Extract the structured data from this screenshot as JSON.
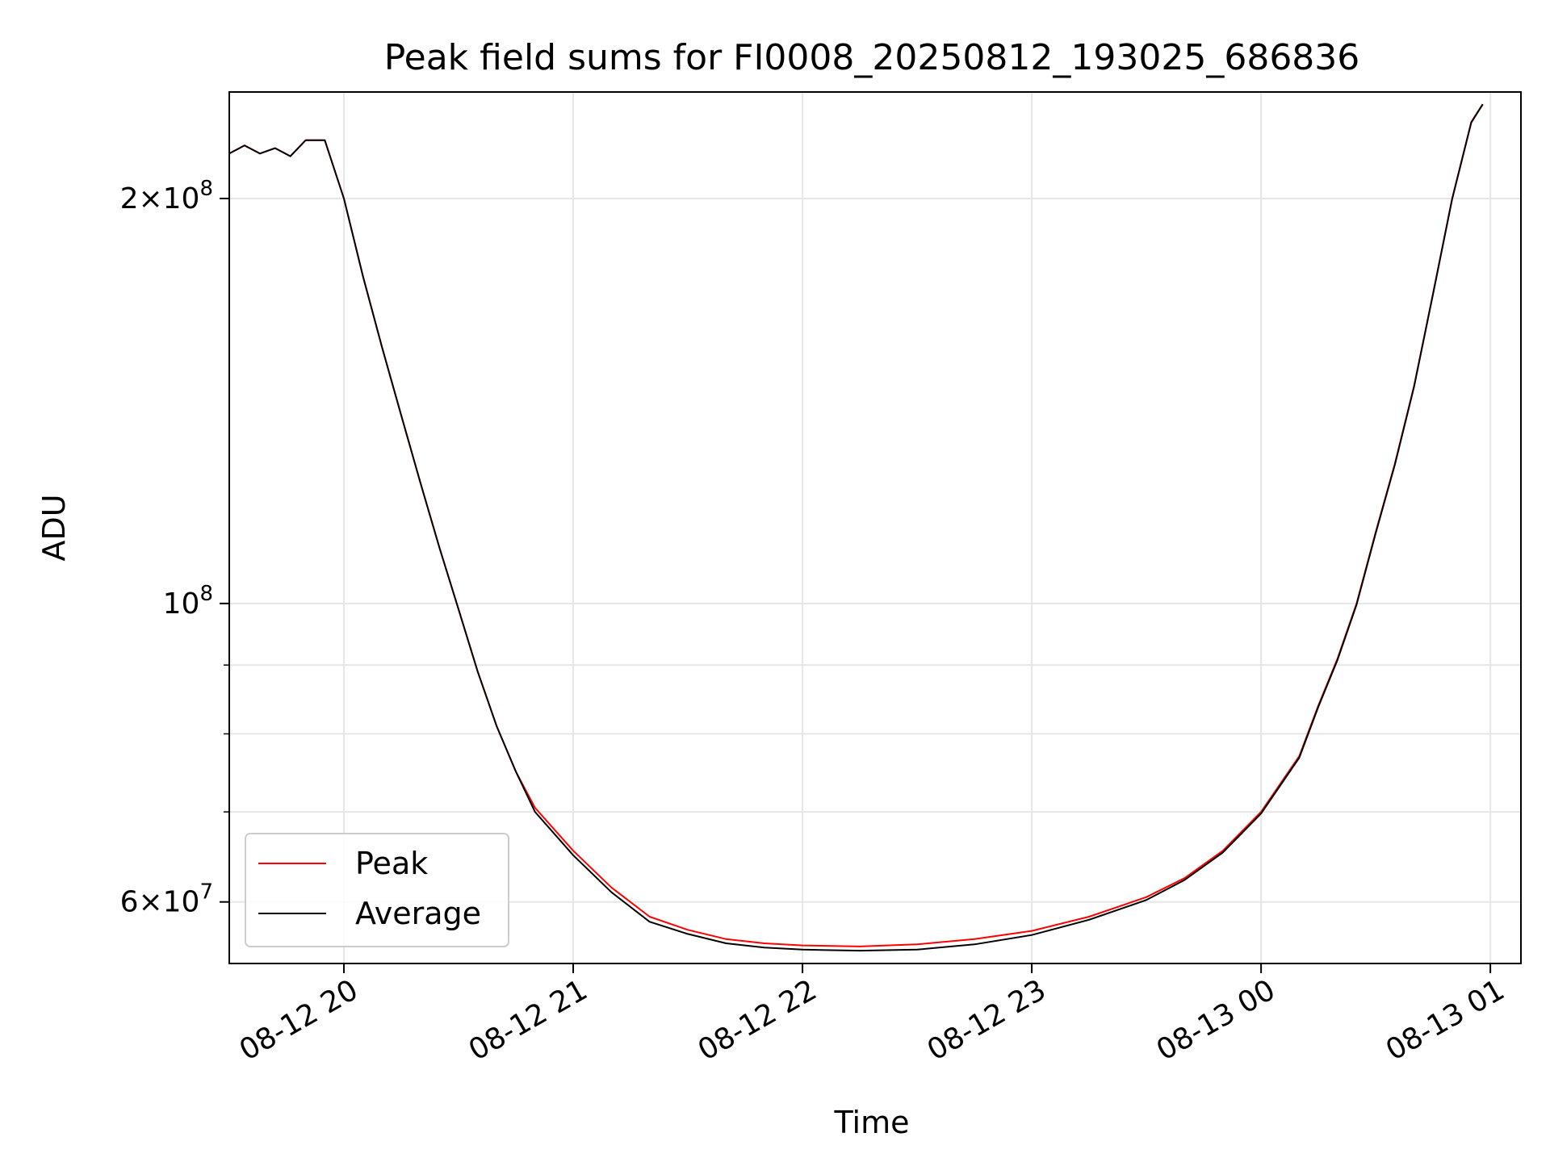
{
  "chart_data": {
    "type": "line",
    "title": "Peak field sums for FI0008_20250812_193025_686836",
    "xlabel": "Time",
    "ylabel": "ADU",
    "yscale": "log",
    "ylim": [
      54000000,
      240000000
    ],
    "xlim": [
      "2025-08-12 19:30",
      "2025-08-13 01:08"
    ],
    "grid": true,
    "legend_position": "lower-left",
    "x_ticks": [
      {
        "t": "2025-08-12 20:00",
        "label": "08-12 20"
      },
      {
        "t": "2025-08-12 21:00",
        "label": "08-12 21"
      },
      {
        "t": "2025-08-12 22:00",
        "label": "08-12 22"
      },
      {
        "t": "2025-08-12 23:00",
        "label": "08-12 23"
      },
      {
        "t": "2025-08-13 00:00",
        "label": "08-13 00"
      },
      {
        "t": "2025-08-13 01:00",
        "label": "08-13 01"
      }
    ],
    "y_ticks_major": [
      {
        "value": 60000000,
        "label_base": "6×10",
        "label_exp": "7"
      },
      {
        "value": 100000000,
        "label_base": "10",
        "label_exp": "8"
      },
      {
        "value": 200000000,
        "label_base": "2×10",
        "label_exp": "8"
      }
    ],
    "y_ticks_minor": [
      70000000,
      80000000,
      90000000
    ],
    "x": [
      "2025-08-12 19:30",
      "2025-08-12 19:34",
      "2025-08-12 19:38",
      "2025-08-12 19:42",
      "2025-08-12 19:46",
      "2025-08-12 19:50",
      "2025-08-12 19:55",
      "2025-08-12 20:00",
      "2025-08-12 20:05",
      "2025-08-12 20:10",
      "2025-08-12 20:15",
      "2025-08-12 20:20",
      "2025-08-12 20:25",
      "2025-08-12 20:30",
      "2025-08-12 20:35",
      "2025-08-12 20:40",
      "2025-08-12 20:45",
      "2025-08-12 20:50",
      "2025-08-12 21:00",
      "2025-08-12 21:10",
      "2025-08-12 21:20",
      "2025-08-12 21:30",
      "2025-08-12 21:40",
      "2025-08-12 21:50",
      "2025-08-12 22:00",
      "2025-08-12 22:15",
      "2025-08-12 22:30",
      "2025-08-12 22:45",
      "2025-08-12 23:00",
      "2025-08-12 23:15",
      "2025-08-12 23:30",
      "2025-08-12 23:40",
      "2025-08-12 23:50",
      "2025-08-13 00:00",
      "2025-08-13 00:10",
      "2025-08-13 00:15",
      "2025-08-13 00:20",
      "2025-08-13 00:25",
      "2025-08-13 00:30",
      "2025-08-13 00:35",
      "2025-08-13 00:40",
      "2025-08-13 00:45",
      "2025-08-13 00:50",
      "2025-08-13 00:55",
      "2025-08-13 00:58"
    ],
    "series": [
      {
        "name": "Peak",
        "color": "#ff0000",
        "values": [
          216000000,
          219000000,
          216000000,
          218000000,
          215000000,
          221000000,
          221000000,
          200000000,
          175000000,
          155000000,
          138000000,
          123000000,
          110000000,
          99000000,
          89000000,
          81000000,
          75000000,
          70500000,
          65500000,
          61500000,
          58500000,
          57200000,
          56300000,
          55900000,
          55700000,
          55600000,
          55800000,
          56300000,
          57100000,
          58500000,
          60500000,
          62500000,
          65500000,
          70000000,
          77000000,
          84000000,
          91000000,
          100000000,
          113000000,
          127000000,
          145000000,
          170000000,
          200000000,
          228000000,
          235000000
        ]
      },
      {
        "name": "Average",
        "color": "#000000",
        "values": [
          216000000,
          219000000,
          216000000,
          218000000,
          215000000,
          221000000,
          221000000,
          200000000,
          175000000,
          155000000,
          138000000,
          123000000,
          110000000,
          99000000,
          89000000,
          81000000,
          75000000,
          70000000,
          65000000,
          61000000,
          58000000,
          56800000,
          55900000,
          55500000,
          55300000,
          55200000,
          55300000,
          55800000,
          56700000,
          58200000,
          60200000,
          62300000,
          65300000,
          69800000,
          76800000,
          83800000,
          90800000,
          99800000,
          112800000,
          126800000,
          144800000,
          169800000,
          199800000,
          227800000,
          235000000
        ]
      }
    ]
  }
}
